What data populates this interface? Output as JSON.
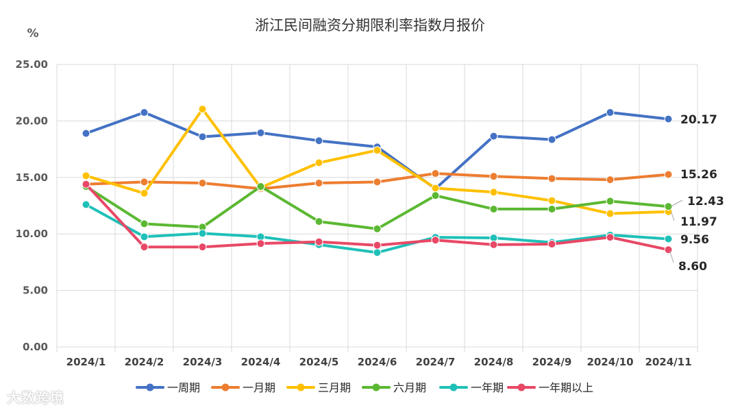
{
  "chart_data": {
    "type": "line",
    "title": "浙江民间融资分期限利率指数月报价",
    "ylabel": "%",
    "ylim": [
      0,
      25
    ],
    "yticks": [
      "25.00",
      "20.00",
      "15.00",
      "10.00",
      "5.00",
      "0.00"
    ],
    "categories": [
      "2024/1",
      "2024/2",
      "2024/3",
      "2024/4",
      "2024/5",
      "2024/6",
      "2024/7",
      "2024/8",
      "2024/9",
      "2024/10",
      "2024/11"
    ],
    "grid": true,
    "legend_position": "bottom",
    "series": [
      {
        "name": "一周期",
        "color": "#4472c4",
        "values": [
          18.9,
          20.75,
          18.6,
          18.95,
          18.25,
          17.7,
          14.0,
          18.65,
          18.35,
          20.75,
          20.17
        ],
        "end_label": "20.17"
      },
      {
        "name": "一月期",
        "color": "#ed7d31",
        "values": [
          14.4,
          14.6,
          14.5,
          14.0,
          14.5,
          14.6,
          15.35,
          15.1,
          14.9,
          14.8,
          15.26
        ],
        "end_label": "15.26"
      },
      {
        "name": "三月期",
        "color": "#ffc000",
        "values": [
          15.15,
          13.6,
          21.05,
          14.1,
          16.3,
          17.4,
          14.05,
          13.7,
          12.95,
          11.8,
          11.97
        ],
        "end_label": "11.97"
      },
      {
        "name": "六月期",
        "color": "#5bb832",
        "values": [
          14.2,
          10.9,
          10.6,
          14.2,
          11.1,
          10.45,
          13.4,
          12.2,
          12.2,
          12.9,
          12.43
        ],
        "end_label": "12.43"
      },
      {
        "name": "一年期",
        "color": "#1fc0b8",
        "values": [
          12.6,
          9.75,
          10.05,
          9.75,
          9.05,
          8.35,
          9.7,
          9.65,
          9.25,
          9.9,
          9.56
        ],
        "end_label": "9.56"
      },
      {
        "name": "一年期以上",
        "color": "#e84866",
        "values": [
          14.4,
          8.85,
          8.85,
          9.15,
          9.3,
          9.0,
          9.45,
          9.05,
          9.1,
          9.7,
          8.6
        ],
        "end_label": "8.60"
      }
    ]
  },
  "watermark": "大数跨境"
}
